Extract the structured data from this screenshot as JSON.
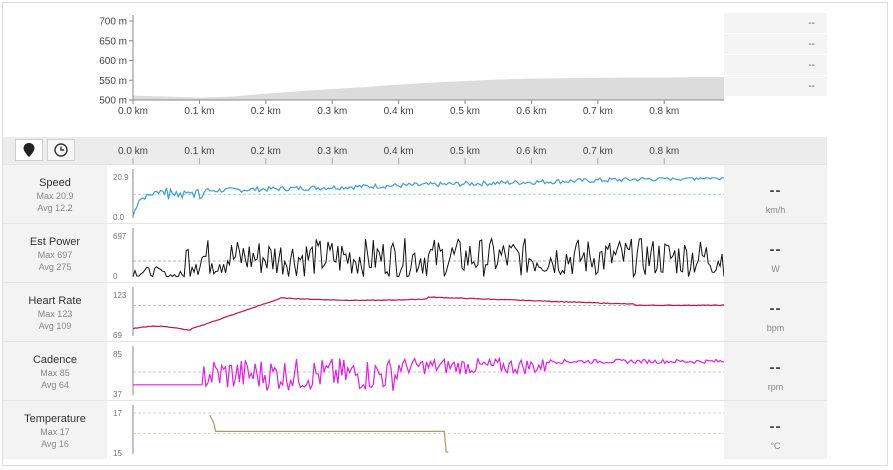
{
  "elevation": {
    "y_ticks": [
      "700 m",
      "650 m",
      "600 m",
      "550 m",
      "500 m"
    ],
    "x_ticks": [
      "0.0 km",
      "0.1 km",
      "0.2 km",
      "0.3 km",
      "0.4 km",
      "0.5 km",
      "0.6 km",
      "0.7 km",
      "0.8 km"
    ],
    "fill_color": "#dcdcdc",
    "chart_data": {
      "type": "area",
      "x_km": [
        0,
        0.05,
        0.1,
        0.15,
        0.2,
        0.25,
        0.3,
        0.35,
        0.4,
        0.45,
        0.5,
        0.55,
        0.6,
        0.65,
        0.7,
        0.75,
        0.8,
        0.85,
        0.89
      ],
      "y_m": [
        511,
        509,
        506,
        509,
        516,
        522,
        528,
        533,
        539,
        544,
        548,
        552,
        554,
        555,
        556,
        557,
        557,
        558,
        558
      ],
      "ylim": [
        500,
        700
      ],
      "xlim": [
        0,
        0.89
      ]
    }
  },
  "readouts": [
    "--",
    "--",
    "--",
    "--"
  ],
  "toolbar": {
    "location_icon": "map-pin-icon",
    "time_icon": "clock-icon",
    "x_ticks": [
      "0.0 km",
      "0.1 km",
      "0.2 km",
      "0.3 km",
      "0.4 km",
      "0.5 km",
      "0.6 km",
      "0.7 km",
      "0.8 km"
    ]
  },
  "metrics": [
    {
      "key": "speed",
      "name": "Speed",
      "max": "Max 20.9",
      "avg": "Avg 12.2",
      "ymax": "20.9",
      "ymin": "0.0",
      "value": "--",
      "unit": "km/h",
      "color": "#3aa0d8",
      "avg_color": "#7fc6e6"
    },
    {
      "key": "power",
      "name": "Est Power",
      "max": "Max 697",
      "avg": "Avg 275",
      "ymax": "697",
      "ymin": "0",
      "value": "--",
      "unit": "W",
      "color": "#111111",
      "avg_color": "#999999"
    },
    {
      "key": "hr",
      "name": "Heart Rate",
      "max": "Max 123",
      "avg": "Avg 109",
      "ymax": "123",
      "ymin": "69",
      "value": "--",
      "unit": "bpm",
      "color": "#c8104a",
      "avg_color": "#aaaaaa"
    },
    {
      "key": "cadence",
      "name": "Cadence",
      "max": "Max 85",
      "avg": "Avg 64",
      "ymax": "85",
      "ymin": "37",
      "value": "--",
      "unit": "rpm",
      "color": "#e020e0",
      "avg_color": "#f0a0f0"
    },
    {
      "key": "temp",
      "name": "Temperature",
      "max": "Max 17",
      "avg": "Avg 16",
      "ymax": "17",
      "ymin": "15",
      "value": "--",
      "unit": "°C",
      "color": "#b09a60",
      "avg_color": "#d8cc9a"
    }
  ]
}
